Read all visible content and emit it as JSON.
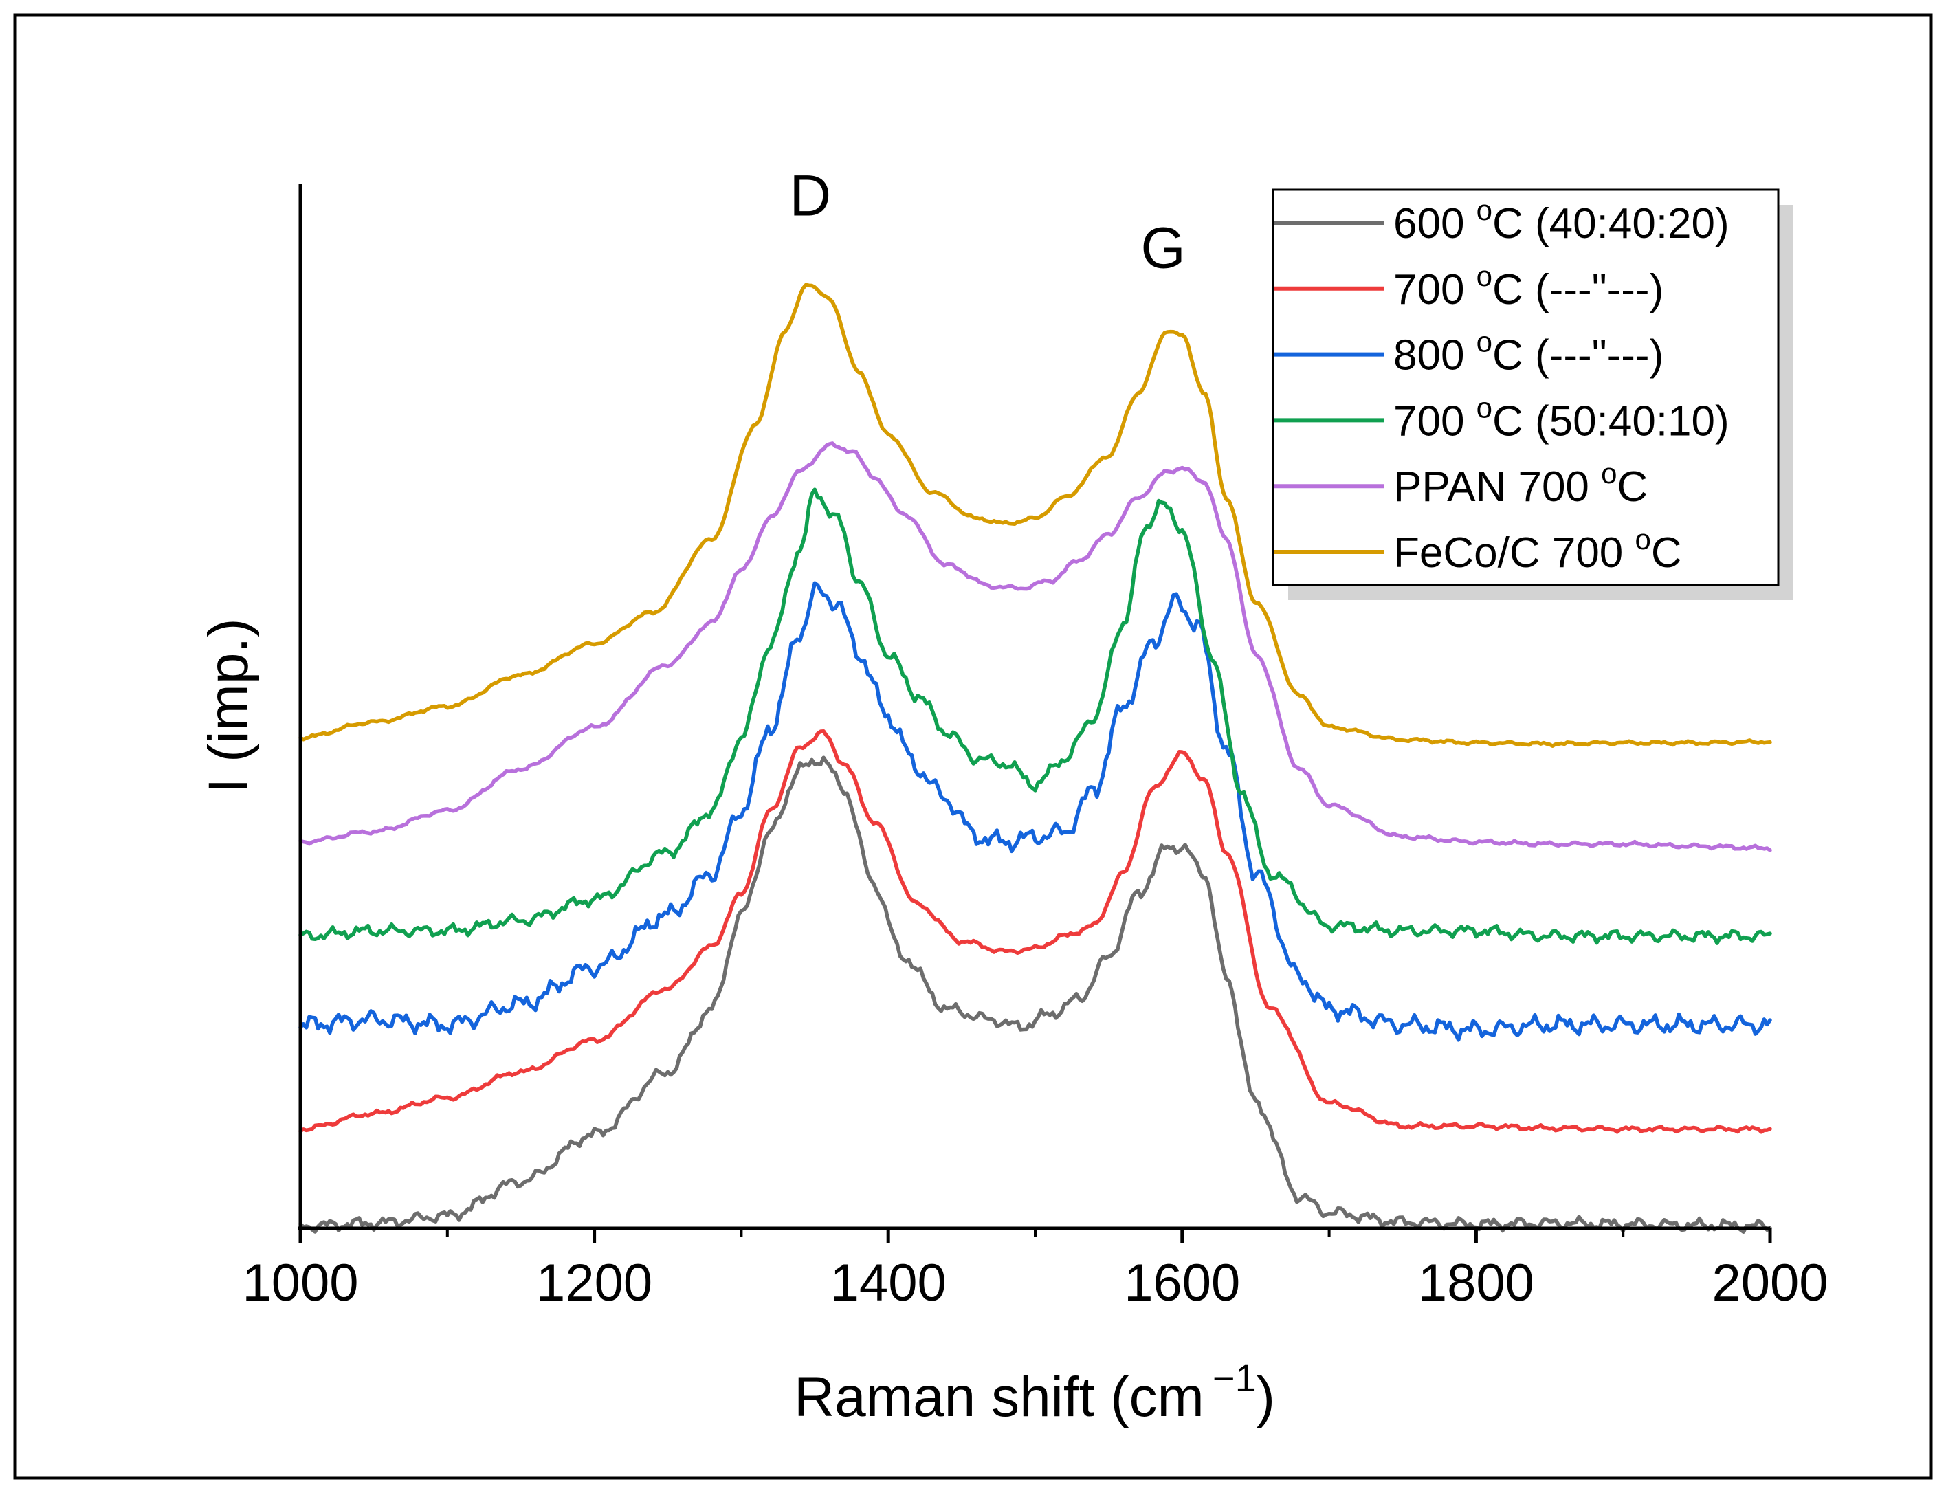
{
  "chart_data": {
    "type": "line",
    "title": "",
    "xlabel": "Raman shift (cm",
    "xlabel_sup": "−1",
    "xlabel_close": ")",
    "ylabel": "I (imp.)",
    "xlim": [
      1000,
      2000
    ],
    "ylim": [
      0,
      100
    ],
    "x_ticks": [
      "1000",
      "1200",
      "1400",
      "1600",
      "1800",
      "2000"
    ],
    "x_tick_values": [
      1000,
      1200,
      1400,
      1600,
      1800,
      2000
    ],
    "x_minor_ticks": [
      1100,
      1300,
      1500,
      1700,
      1900
    ],
    "grid": false,
    "legend_position": "top-right",
    "annotations": [
      {
        "text": "D",
        "x": 1347,
        "y": 97
      },
      {
        "text": "G",
        "x": 1587,
        "y": 92
      }
    ],
    "series": [
      {
        "name": "600 °C (40:40:20)",
        "label_main": "600 ",
        "label_sup": "o",
        "label_rest": "C (40:40:20)",
        "color": "#6d6d6d",
        "noise": 0.35,
        "points": [
          [
            1000,
            0.2
          ],
          [
            1050,
            0.5
          ],
          [
            1100,
            1.2
          ],
          [
            1150,
            4.5
          ],
          [
            1200,
            9
          ],
          [
            1250,
            15
          ],
          [
            1280,
            21
          ],
          [
            1300,
            30
          ],
          [
            1320,
            38
          ],
          [
            1340,
            44
          ],
          [
            1355,
            45
          ],
          [
            1370,
            42
          ],
          [
            1390,
            33
          ],
          [
            1410,
            26
          ],
          [
            1440,
            21
          ],
          [
            1470,
            20
          ],
          [
            1490,
            19.3
          ],
          [
            1510,
            20.5
          ],
          [
            1530,
            22
          ],
          [
            1550,
            26
          ],
          [
            1570,
            32
          ],
          [
            1590,
            36.5
          ],
          [
            1600,
            36.5
          ],
          [
            1615,
            34
          ],
          [
            1630,
            24
          ],
          [
            1650,
            12
          ],
          [
            1680,
            3
          ],
          [
            1700,
            1.5
          ],
          [
            1750,
            0.6
          ],
          [
            1800,
            0.4
          ],
          [
            1850,
            0.5
          ],
          [
            1900,
            0.4
          ],
          [
            1950,
            0.3
          ],
          [
            2000,
            0.2
          ]
        ]
      },
      {
        "name": "700 °C (---\"---)",
        "label_main": "700 ",
        "label_sup": "o",
        "label_rest": "C (---\"---)",
        "color": "#ee3b3b",
        "noise": 0.15,
        "points": [
          [
            1000,
            9.5
          ],
          [
            1050,
            11
          ],
          [
            1100,
            12.5
          ],
          [
            1150,
            15
          ],
          [
            1200,
            18
          ],
          [
            1250,
            23
          ],
          [
            1280,
            27
          ],
          [
            1300,
            32
          ],
          [
            1320,
            40
          ],
          [
            1340,
            46
          ],
          [
            1355,
            47.5
          ],
          [
            1370,
            44.5
          ],
          [
            1390,
            39
          ],
          [
            1420,
            31
          ],
          [
            1450,
            27.5
          ],
          [
            1480,
            26.5
          ],
          [
            1500,
            26.8
          ],
          [
            1520,
            28
          ],
          [
            1540,
            29
          ],
          [
            1560,
            34
          ],
          [
            1580,
            42
          ],
          [
            1600,
            45.5
          ],
          [
            1615,
            43
          ],
          [
            1630,
            36
          ],
          [
            1660,
            21
          ],
          [
            1700,
            12
          ],
          [
            1750,
            9.8
          ],
          [
            1800,
            9.8
          ],
          [
            1850,
            9.6
          ],
          [
            1900,
            9.5
          ],
          [
            1950,
            9.5
          ],
          [
            2000,
            9.5
          ]
        ]
      },
      {
        "name": "800 °C (---\"---)",
        "label_main": "800 ",
        "label_sup": "o",
        "label_rest": "C (---\"---)",
        "color": "#1464dc",
        "noise": 0.55,
        "points": [
          [
            1000,
            19.5
          ],
          [
            1050,
            20
          ],
          [
            1100,
            19.5
          ],
          [
            1150,
            21.5
          ],
          [
            1200,
            25
          ],
          [
            1250,
            30
          ],
          [
            1280,
            34
          ],
          [
            1300,
            40
          ],
          [
            1320,
            48
          ],
          [
            1340,
            57
          ],
          [
            1350,
            61
          ],
          [
            1365,
            60
          ],
          [
            1380,
            55
          ],
          [
            1400,
            49
          ],
          [
            1420,
            44
          ],
          [
            1440,
            41
          ],
          [
            1460,
            37.5
          ],
          [
            1480,
            37
          ],
          [
            1500,
            37.5
          ],
          [
            1520,
            38
          ],
          [
            1540,
            42
          ],
          [
            1560,
            50
          ],
          [
            1580,
            56
          ],
          [
            1595,
            60
          ],
          [
            1610,
            58
          ],
          [
            1630,
            46
          ],
          [
            1650,
            34
          ],
          [
            1680,
            24
          ],
          [
            1700,
            21
          ],
          [
            1750,
            19.5
          ],
          [
            1800,
            19
          ],
          [
            1850,
            19.5
          ],
          [
            1900,
            19.5
          ],
          [
            1950,
            19.5
          ],
          [
            2000,
            19.5
          ]
        ]
      },
      {
        "name": "700 °C (50:40:10)",
        "label_main": "700 ",
        "label_sup": "o",
        "label_rest": "C (50:40:10)",
        "color": "#10a050",
        "noise": 0.35,
        "points": [
          [
            1000,
            28
          ],
          [
            1050,
            28.5
          ],
          [
            1100,
            28.5
          ],
          [
            1150,
            29.5
          ],
          [
            1200,
            31.5
          ],
          [
            1250,
            36
          ],
          [
            1280,
            40
          ],
          [
            1300,
            47
          ],
          [
            1320,
            56
          ],
          [
            1340,
            65
          ],
          [
            1350,
            70.5
          ],
          [
            1365,
            68
          ],
          [
            1380,
            62
          ],
          [
            1400,
            55
          ],
          [
            1420,
            51
          ],
          [
            1440,
            47.5
          ],
          [
            1460,
            45
          ],
          [
            1480,
            44.5
          ],
          [
            1500,
            42.5
          ],
          [
            1520,
            45
          ],
          [
            1540,
            49
          ],
          [
            1560,
            58
          ],
          [
            1575,
            67
          ],
          [
            1585,
            69.5
          ],
          [
            1600,
            67
          ],
          [
            1620,
            55
          ],
          [
            1640,
            42
          ],
          [
            1660,
            34
          ],
          [
            1700,
            29
          ],
          [
            1750,
            28.5
          ],
          [
            1800,
            28.5
          ],
          [
            1850,
            28
          ],
          [
            1900,
            28
          ],
          [
            1950,
            28
          ],
          [
            2000,
            28
          ]
        ]
      },
      {
        "name": "PPAN 700 °C",
        "label_main": "PPAN 700 ",
        "label_sup": "o",
        "label_rest": "C",
        "color": "#b870dc",
        "noise": 0.12,
        "points": [
          [
            1000,
            37
          ],
          [
            1050,
            38
          ],
          [
            1100,
            40
          ],
          [
            1150,
            44
          ],
          [
            1200,
            48
          ],
          [
            1250,
            54
          ],
          [
            1280,
            58
          ],
          [
            1300,
            63
          ],
          [
            1320,
            68
          ],
          [
            1340,
            72.5
          ],
          [
            1360,
            75
          ],
          [
            1375,
            74.5
          ],
          [
            1390,
            72
          ],
          [
            1410,
            68.5
          ],
          [
            1440,
            63.5
          ],
          [
            1470,
            61.5
          ],
          [
            1490,
            61.3
          ],
          [
            1510,
            62
          ],
          [
            1530,
            64
          ],
          [
            1550,
            66.5
          ],
          [
            1570,
            70
          ],
          [
            1590,
            72.5
          ],
          [
            1600,
            72.8
          ],
          [
            1615,
            71.5
          ],
          [
            1630,
            66
          ],
          [
            1650,
            55
          ],
          [
            1680,
            44
          ],
          [
            1700,
            40.5
          ],
          [
            1750,
            37.5
          ],
          [
            1800,
            37
          ],
          [
            1850,
            36.8
          ],
          [
            1900,
            36.8
          ],
          [
            1950,
            36.6
          ],
          [
            2000,
            36.4
          ]
        ]
      },
      {
        "name": "FeCo/C 700 °C",
        "label_main": "FeCo/C 700 ",
        "label_sup": "o",
        "label_rest": "C",
        "color": "#d69b00",
        "noise": 0.1,
        "points": [
          [
            1000,
            47
          ],
          [
            1050,
            48.5
          ],
          [
            1100,
            50
          ],
          [
            1150,
            53
          ],
          [
            1200,
            56
          ],
          [
            1240,
            59
          ],
          [
            1280,
            66
          ],
          [
            1310,
            77
          ],
          [
            1330,
            86
          ],
          [
            1345,
            90.5
          ],
          [
            1360,
            89
          ],
          [
            1380,
            82
          ],
          [
            1400,
            76
          ],
          [
            1430,
            70.5
          ],
          [
            1460,
            68
          ],
          [
            1480,
            67.5
          ],
          [
            1500,
            68
          ],
          [
            1520,
            70
          ],
          [
            1550,
            74
          ],
          [
            1570,
            80
          ],
          [
            1590,
            86
          ],
          [
            1600,
            85.5
          ],
          [
            1615,
            80
          ],
          [
            1630,
            70
          ],
          [
            1650,
            60
          ],
          [
            1680,
            51
          ],
          [
            1700,
            48
          ],
          [
            1750,
            46.8
          ],
          [
            1800,
            46.5
          ],
          [
            1850,
            46.4
          ],
          [
            1900,
            46.5
          ],
          [
            1950,
            46.5
          ],
          [
            2000,
            46.6
          ]
        ]
      }
    ]
  }
}
